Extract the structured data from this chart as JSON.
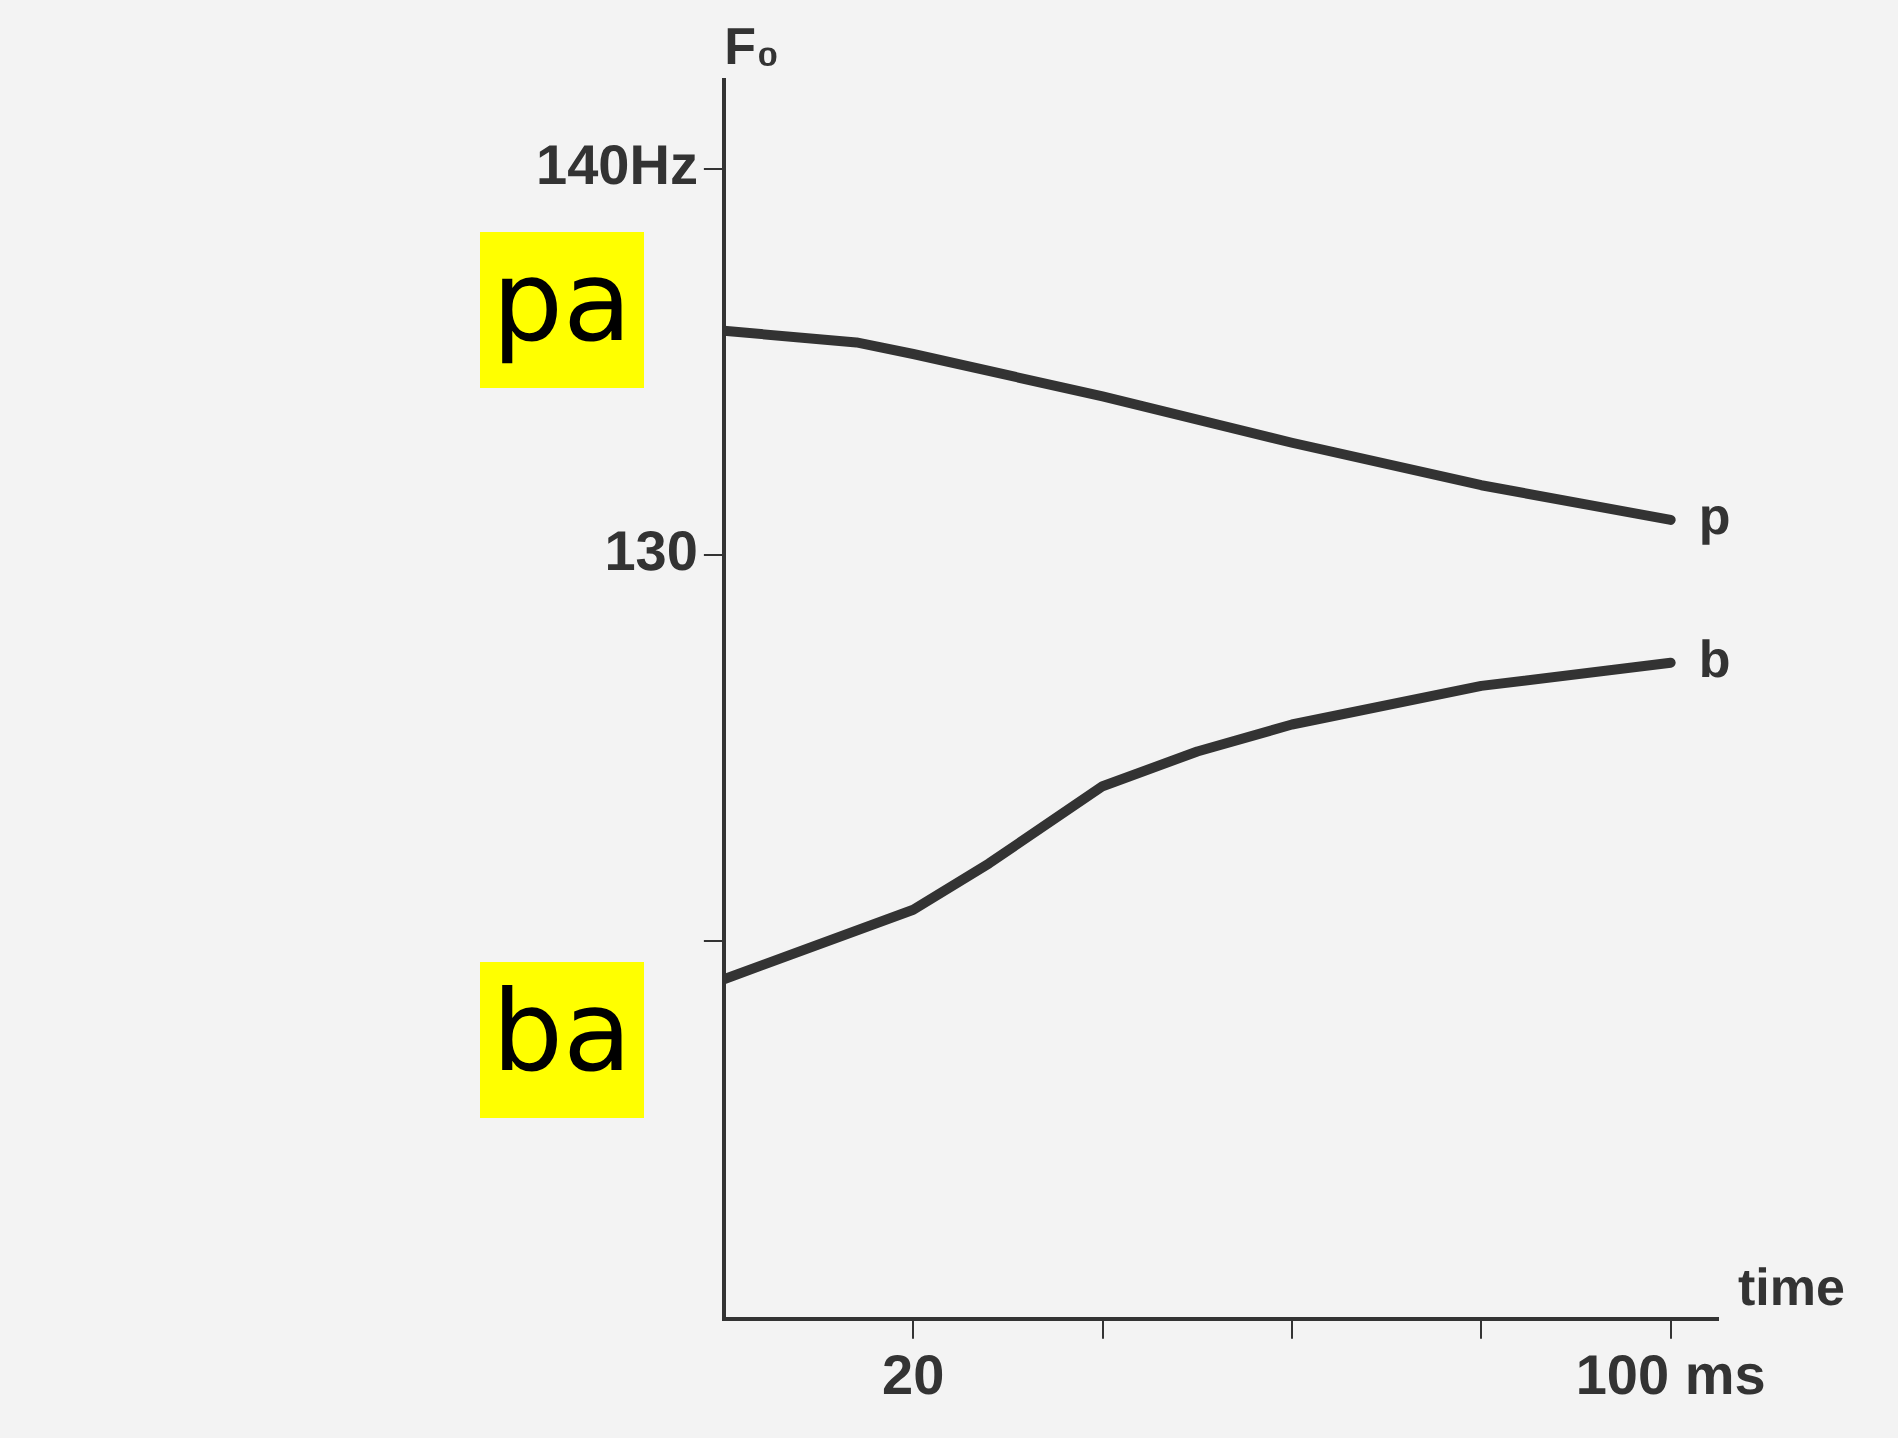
{
  "chart_data": {
    "type": "line",
    "ylabel": "F₀",
    "xlabel": "time",
    "xlim": [
      0,
      105
    ],
    "xticks": [
      {
        "value": 20,
        "label": "20"
      },
      {
        "value": 40,
        "label": null
      },
      {
        "value": 60,
        "label": null
      },
      {
        "value": 80,
        "label": null
      },
      {
        "value": 100,
        "label": "100 ms"
      }
    ],
    "ylim": [
      110.2,
      142.3
    ],
    "yticks": [
      {
        "value": 120,
        "label": null
      },
      {
        "value": 130,
        "label": "130"
      },
      {
        "value": 140,
        "label": "140Hz"
      }
    ],
    "grid": false,
    "legend": false,
    "marker": "none",
    "line_style": "solid",
    "series": [
      {
        "name": "p",
        "color": "#333333",
        "x": [
          0,
          14,
          20,
          40,
          60,
          80,
          100
        ],
        "values": [
          135.8,
          135.5,
          135.2,
          134.1,
          132.9,
          131.8,
          130.9
        ]
      },
      {
        "name": "b",
        "color": "#333333",
        "x": [
          0,
          20,
          28,
          40,
          50,
          60,
          80,
          100
        ],
        "values": [
          119.0,
          120.8,
          122.0,
          124.0,
          124.9,
          125.6,
          126.6,
          127.2
        ]
      }
    ],
    "annotations": [
      "pa",
      "ba"
    ]
  }
}
